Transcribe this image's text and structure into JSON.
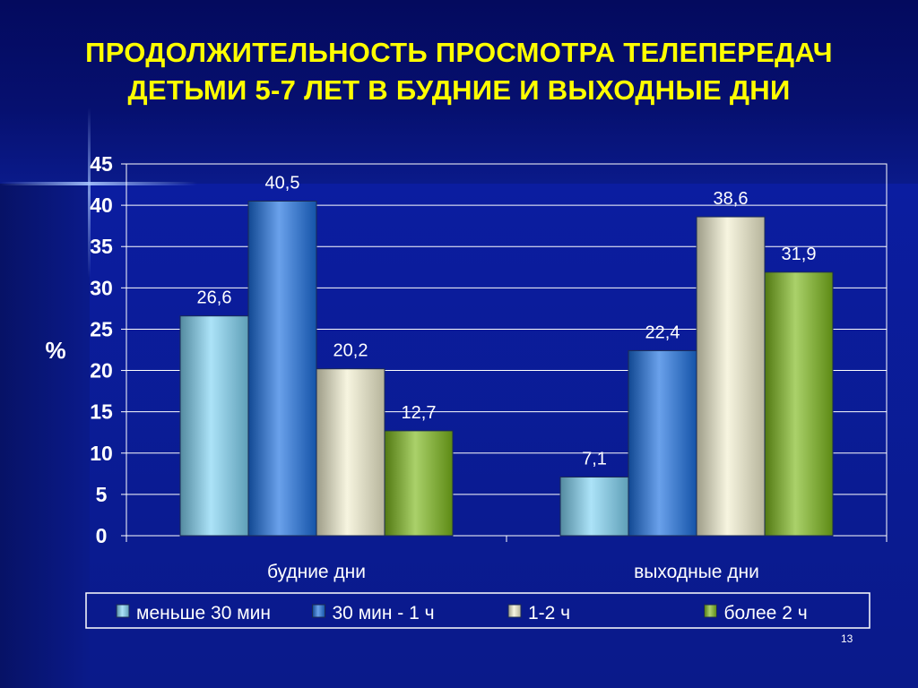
{
  "slide": {
    "title_line1": "ПРОДОЛЖИТЕЛЬНОСТЬ ПРОСМОТРА ТЕЛЕПЕРЕДАЧ",
    "title_line2": "ДЕТЬМИ 5-7 ЛЕТ В БУДНИЕ И ВЫХОДНЫЕ ДНИ",
    "page_number": "13"
  },
  "chart_data": {
    "type": "bar",
    "categories": [
      "будние дни",
      "выходные дни"
    ],
    "series": [
      {
        "name": "меньше 30 мин",
        "values": [
          26.6,
          7.1
        ],
        "labels": [
          "26,6",
          "7,1"
        ],
        "color": "#7fd4f4"
      },
      {
        "name": "30 мин - 1 ч",
        "values": [
          40.5,
          22.4
        ],
        "labels": [
          "40,5",
          "22,4"
        ],
        "color": "#1a6fe0"
      },
      {
        "name": "1-2 ч",
        "values": [
          20.2,
          38.6
        ],
        "labels": [
          "20,2",
          "38,6"
        ],
        "color": "#f2f0cf"
      },
      {
        "name": "более 2 ч",
        "values": [
          12.7,
          31.9
        ],
        "labels": [
          "12,7",
          "31,9"
        ],
        "color": "#7cb81a"
      }
    ],
    "ylabel": "%",
    "ylim": [
      0,
      45
    ],
    "yticks": [
      0,
      5,
      10,
      15,
      20,
      25,
      30,
      35,
      40,
      45
    ],
    "grid": true,
    "legend": "bottom"
  }
}
